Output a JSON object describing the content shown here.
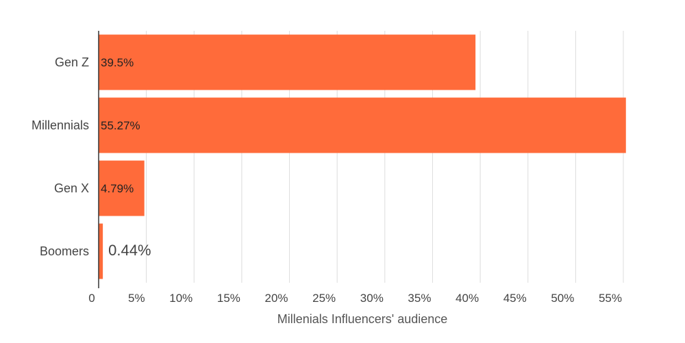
{
  "chart_data": {
    "type": "bar",
    "orientation": "horizontal",
    "categories": [
      "Gen Z",
      "Millennials",
      "Gen X",
      "Boomers"
    ],
    "values": [
      39.5,
      55.27,
      4.79,
      0.44
    ],
    "data_labels": [
      "39.5%",
      "55.27%",
      "4.79%",
      "0.44%"
    ],
    "xlabel": "Millenials Influencers' audience",
    "xlim": [
      0,
      55
    ],
    "x_ticks": [
      0,
      5,
      10,
      15,
      20,
      25,
      30,
      35,
      40,
      45,
      50,
      55
    ],
    "x_tick_labels": [
      "0",
      "5%",
      "10%",
      "15%",
      "20%",
      "25%",
      "30%",
      "35%",
      "40%",
      "45%",
      "50%",
      "55%"
    ],
    "bar_color": "#ff6b3a",
    "grid": true,
    "legend": "none"
  }
}
